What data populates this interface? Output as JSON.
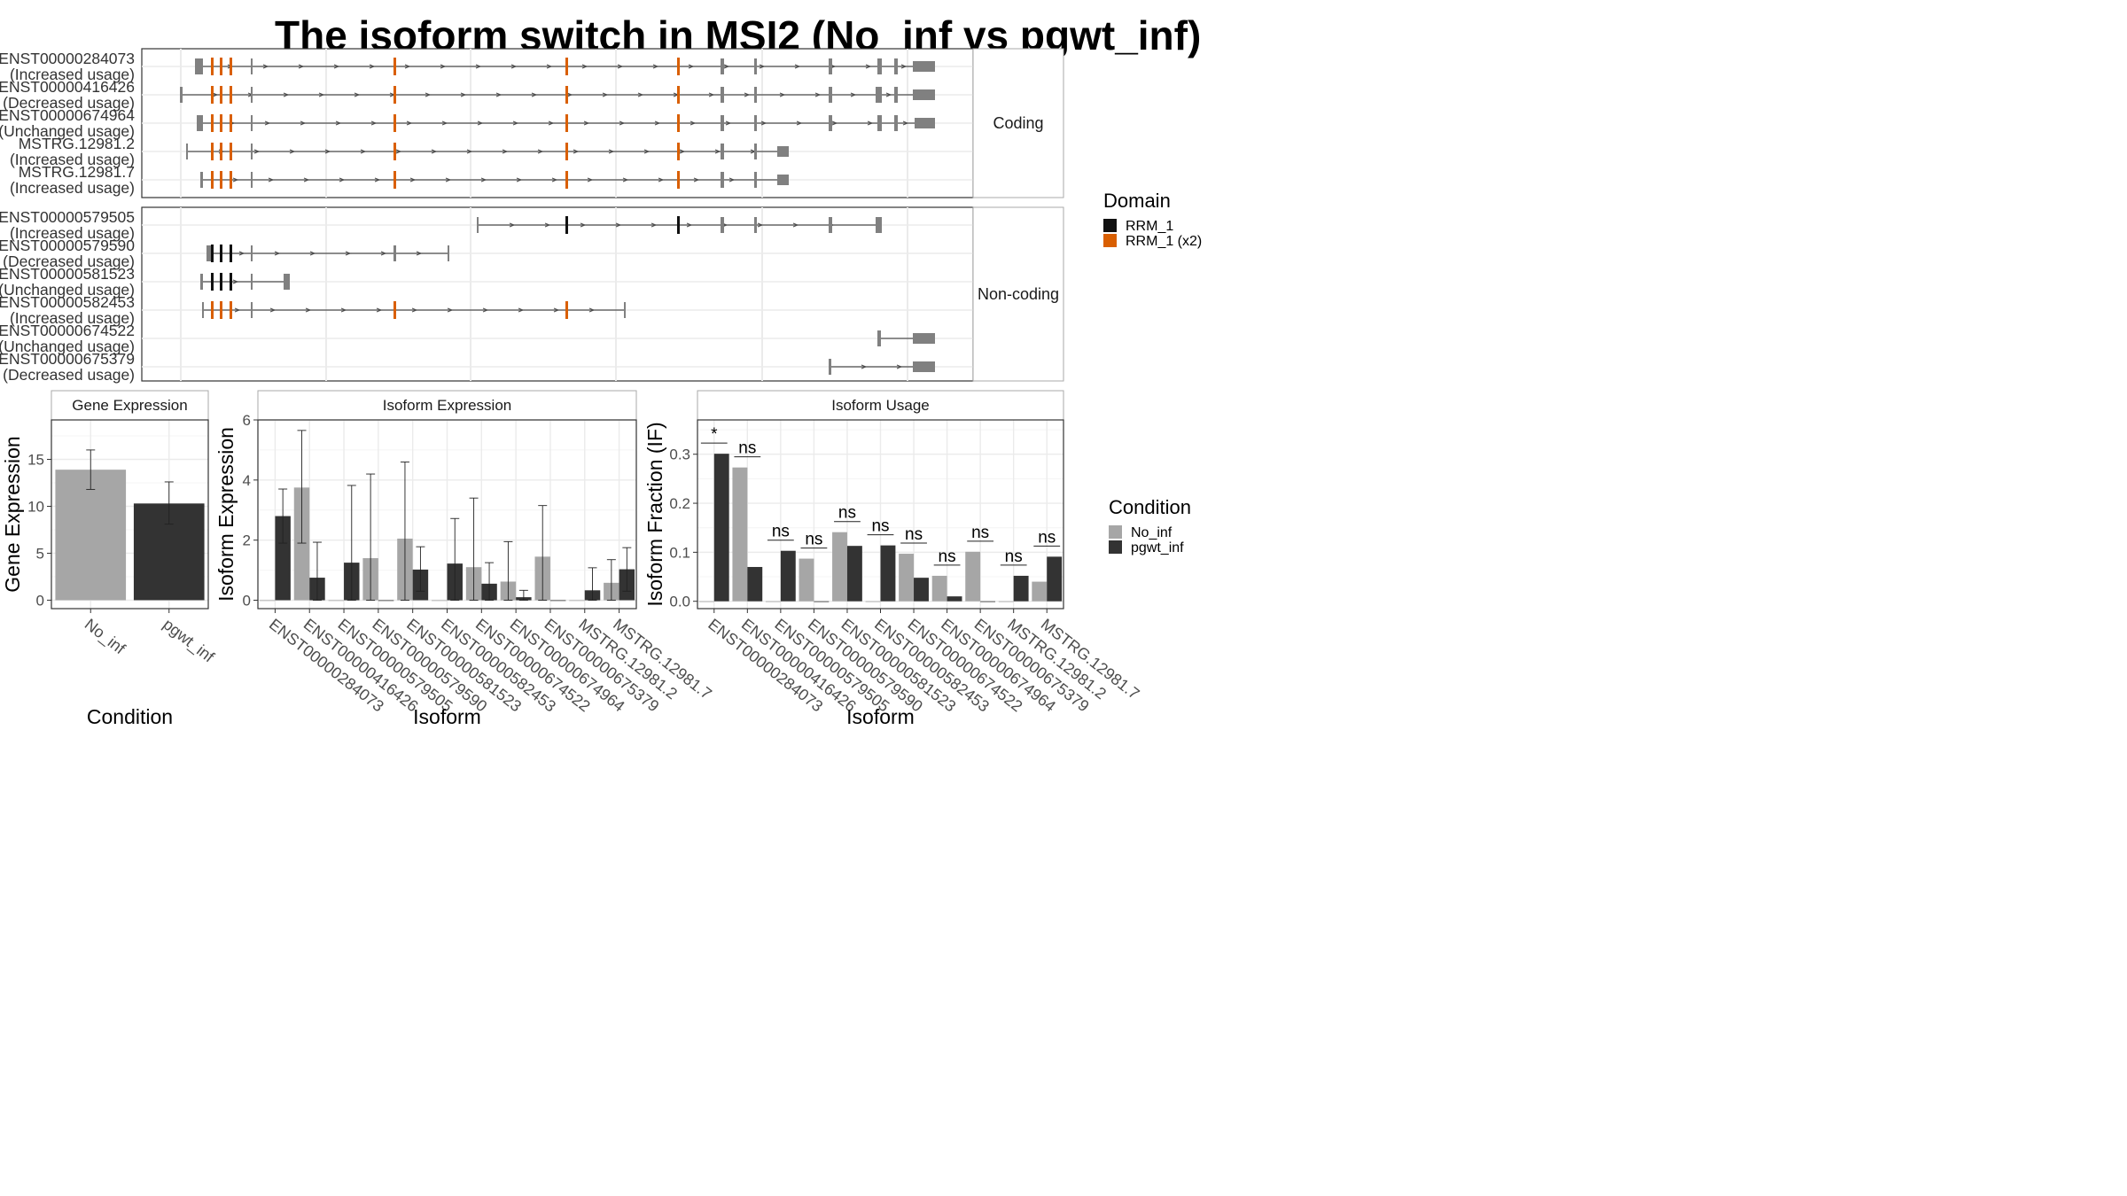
{
  "title": "The isoform switch in MSI2 (No_inf vs pgwt_inf)",
  "colors": {
    "no_inf": "#a6a6a6",
    "pgwt_inf": "#333333",
    "exon": "#808080",
    "rrm": "#111111",
    "rrm_x2": "#d95f02",
    "intron": "#4d4d4d",
    "panel_bg": "#ffffff",
    "strip_bg": "#ffffff",
    "grid": "#ebebeb",
    "frame": "#333333"
  },
  "structure": {
    "coding_label": "Coding",
    "noncoding_label": "Non-coding",
    "coding": [
      {
        "id": "ENST00000284073",
        "usage": "(Increased usage)",
        "start": 220,
        "end": 1055,
        "exons": [
          [
            220,
            226
          ],
          [
            226,
            229
          ],
          [
            238,
            241
          ],
          [
            248,
            251
          ],
          [
            259,
            262
          ],
          [
            283,
            285
          ],
          [
            444,
            447
          ],
          [
            638,
            641
          ],
          [
            764,
            767
          ],
          [
            813,
            817
          ],
          [
            851,
            854
          ],
          [
            935,
            939
          ],
          [
            990,
            995
          ],
          [
            1009,
            1013
          ],
          [
            1030,
            1055
          ]
        ],
        "domains": [
          [
            238,
            241,
            "x2"
          ],
          [
            248,
            251,
            "x2"
          ],
          [
            259,
            262,
            "x2"
          ],
          [
            444,
            447,
            "x2"
          ],
          [
            638,
            641,
            "x2"
          ],
          [
            764,
            767,
            "x2"
          ]
        ]
      },
      {
        "id": "ENST00000416426",
        "usage": "(Decreased usage)",
        "start": 203,
        "end": 1055,
        "exons": [
          [
            203,
            206
          ],
          [
            238,
            241
          ],
          [
            248,
            251
          ],
          [
            259,
            262
          ],
          [
            283,
            285
          ],
          [
            444,
            447
          ],
          [
            638,
            641
          ],
          [
            764,
            767
          ],
          [
            813,
            817
          ],
          [
            851,
            854
          ],
          [
            935,
            939
          ],
          [
            988,
            995
          ],
          [
            1009,
            1013
          ],
          [
            1030,
            1055
          ]
        ],
        "domains": [
          [
            238,
            241,
            "x2"
          ],
          [
            248,
            251,
            "x2"
          ],
          [
            259,
            262,
            "x2"
          ],
          [
            444,
            447,
            "x2"
          ],
          [
            638,
            641,
            "x2"
          ],
          [
            764,
            767,
            "x2"
          ]
        ]
      },
      {
        "id": "ENST00000674964",
        "usage": "(Unchanged usage)",
        "start": 222,
        "end": 1055,
        "exons": [
          [
            222,
            226
          ],
          [
            226,
            229
          ],
          [
            238,
            241
          ],
          [
            248,
            251
          ],
          [
            259,
            262
          ],
          [
            283,
            285
          ],
          [
            444,
            447
          ],
          [
            638,
            641
          ],
          [
            764,
            767
          ],
          [
            813,
            817
          ],
          [
            851,
            854
          ],
          [
            935,
            939
          ],
          [
            990,
            995
          ],
          [
            1009,
            1013
          ],
          [
            1032,
            1055
          ]
        ],
        "domains": [
          [
            238,
            241,
            "x2"
          ],
          [
            248,
            251,
            "x2"
          ],
          [
            259,
            262,
            "x2"
          ],
          [
            444,
            447,
            "x2"
          ],
          [
            638,
            641,
            "x2"
          ],
          [
            764,
            767,
            "x2"
          ]
        ]
      },
      {
        "id": "MSTRG.12981.2",
        "usage": "(Increased usage)",
        "start": 210,
        "end": 890,
        "exons": [
          [
            210,
            212
          ],
          [
            238,
            241
          ],
          [
            248,
            251
          ],
          [
            259,
            262
          ],
          [
            283,
            285
          ],
          [
            444,
            447
          ],
          [
            638,
            641
          ],
          [
            764,
            767
          ],
          [
            813,
            817
          ],
          [
            851,
            854
          ],
          [
            877,
            890
          ]
        ],
        "domains": [
          [
            238,
            241,
            "x2"
          ],
          [
            248,
            251,
            "x2"
          ],
          [
            259,
            262,
            "x2"
          ],
          [
            444,
            447,
            "x2"
          ],
          [
            638,
            641,
            "x2"
          ],
          [
            764,
            767,
            "x2"
          ]
        ]
      },
      {
        "id": "MSTRG.12981.7",
        "usage": "(Increased usage)",
        "start": 226,
        "end": 890,
        "exons": [
          [
            226,
            229
          ],
          [
            238,
            241
          ],
          [
            248,
            251
          ],
          [
            259,
            262
          ],
          [
            283,
            285
          ],
          [
            444,
            447
          ],
          [
            638,
            641
          ],
          [
            764,
            767
          ],
          [
            813,
            817
          ],
          [
            851,
            854
          ],
          [
            877,
            890
          ]
        ],
        "domains": [
          [
            238,
            241,
            "x2"
          ],
          [
            248,
            251,
            "x2"
          ],
          [
            259,
            262,
            "x2"
          ],
          [
            444,
            447,
            "x2"
          ],
          [
            638,
            641,
            "x2"
          ],
          [
            764,
            767,
            "x2"
          ]
        ]
      }
    ],
    "noncoding": [
      {
        "id": "ENST00000579505",
        "usage": "(Increased usage)",
        "start": 538,
        "end": 995,
        "exons": [
          [
            538,
            540
          ],
          [
            638,
            641
          ],
          [
            764,
            767
          ],
          [
            813,
            817
          ],
          [
            851,
            854
          ],
          [
            935,
            939
          ],
          [
            988,
            995
          ]
        ],
        "domains": [
          [
            638,
            641,
            "single"
          ],
          [
            764,
            767,
            "single"
          ]
        ]
      },
      {
        "id": "ENST00000579590",
        "usage": "(Decreased usage)",
        "start": 233,
        "end": 507,
        "exons": [
          [
            233,
            238
          ],
          [
            238,
            241
          ],
          [
            248,
            251
          ],
          [
            259,
            262
          ],
          [
            283,
            285
          ],
          [
            444,
            447
          ],
          [
            505,
            507
          ]
        ],
        "domains": [
          [
            238,
            241,
            "single"
          ],
          [
            248,
            251,
            "single"
          ],
          [
            259,
            262,
            "single"
          ]
        ]
      },
      {
        "id": "ENST00000581523",
        "usage": "(Unchanged usage)",
        "start": 226,
        "end": 327,
        "exons": [
          [
            226,
            229
          ],
          [
            238,
            241
          ],
          [
            248,
            251
          ],
          [
            259,
            262
          ],
          [
            283,
            285
          ],
          [
            320,
            327
          ]
        ],
        "domains": [
          [
            238,
            241,
            "single"
          ],
          [
            248,
            251,
            "single"
          ],
          [
            259,
            262,
            "single"
          ]
        ]
      },
      {
        "id": "ENST00000582453",
        "usage": "(Increased usage)",
        "start": 228,
        "end": 706,
        "exons": [
          [
            228,
            230
          ],
          [
            238,
            241
          ],
          [
            248,
            251
          ],
          [
            259,
            262
          ],
          [
            283,
            285
          ],
          [
            444,
            447
          ],
          [
            638,
            641
          ],
          [
            704,
            706
          ]
        ],
        "domains": [
          [
            238,
            241,
            "x2"
          ],
          [
            248,
            251,
            "x2"
          ],
          [
            259,
            262,
            "x2"
          ],
          [
            444,
            447,
            "x2"
          ],
          [
            638,
            641,
            "x2"
          ]
        ]
      },
      {
        "id": "ENST00000674522",
        "usage": "(Unchanged usage)",
        "start": 990,
        "end": 1055,
        "exons": [
          [
            990,
            994
          ],
          [
            1030,
            1055
          ]
        ],
        "domains": []
      },
      {
        "id": "ENST00000675379",
        "usage": "(Decreased usage)",
        "start": 935,
        "end": 1055,
        "exons": [
          [
            935,
            938
          ],
          [
            1030,
            1055
          ]
        ],
        "domains": []
      }
    ]
  },
  "legend_domain": {
    "title": "Domain",
    "items": [
      {
        "label": "RRM_1",
        "key": "rrm"
      },
      {
        "label": "RRM_1 (x2)",
        "key": "rrm_x2"
      }
    ]
  },
  "legend_condition": {
    "title": "Condition",
    "items": [
      {
        "label": "No_inf",
        "key": "no_inf"
      },
      {
        "label": "pgwt_inf",
        "key": "pgwt_inf"
      }
    ]
  },
  "chart_data": [
    {
      "type": "bar",
      "strip": "Gene Expression",
      "xlabel": "Condition",
      "ylabel": "Gene Expression",
      "categories": [
        "No_inf",
        "pgwt_inf"
      ],
      "values": [
        13.9,
        10.3
      ],
      "err_low": [
        11.8,
        8.1
      ],
      "err_high": [
        16.0,
        12.6
      ],
      "yticks": [
        0,
        5,
        10,
        15
      ],
      "ylim": [
        -0.9,
        19.2
      ]
    },
    {
      "type": "bar",
      "strip": "Isoform Expression",
      "xlabel": "Isoform",
      "ylabel": "Isoform Expression",
      "categories": [
        "ENST00000284073",
        "ENST00000416426",
        "ENST00000579505",
        "ENST00000579590",
        "ENST00000581523",
        "ENST00000582453",
        "ENST00000674522",
        "ENST00000674964",
        "ENST00000675379",
        "MSTRG.12981.2",
        "MSTRG.12981.7"
      ],
      "yticks": [
        0,
        2,
        4,
        6
      ],
      "ylim": [
        -0.28,
        6.0
      ],
      "series": [
        {
          "name": "No_inf",
          "values": [
            0,
            3.75,
            0,
            1.4,
            2.05,
            0,
            1.1,
            0.62,
            1.45,
            0,
            0.58
          ],
          "err_low": [
            0,
            1.9,
            0,
            0,
            0,
            0,
            0,
            0,
            0,
            0,
            0
          ],
          "err_high": [
            0,
            5.65,
            0,
            4.2,
            4.6,
            0,
            3.4,
            1.95,
            3.15,
            0,
            1.35
          ]
        },
        {
          "name": "pgwt_inf",
          "values": [
            2.8,
            0.75,
            1.25,
            0,
            1.02,
            1.22,
            0.55,
            0.1,
            0,
            0.33,
            1.03
          ],
          "err_low": [
            1.9,
            0,
            0,
            0,
            0.3,
            0,
            0,
            0,
            0,
            0,
            0.3
          ],
          "err_high": [
            3.7,
            1.93,
            3.82,
            0,
            1.78,
            2.72,
            1.25,
            0.33,
            0,
            1.08,
            1.75
          ]
        }
      ]
    },
    {
      "type": "bar",
      "strip": "Isoform Usage",
      "xlabel": "Isoform",
      "ylabel": "Isoform Fraction (IF)",
      "categories": [
        "ENST00000284073",
        "ENST00000416426",
        "ENST00000579505",
        "ENST00000579590",
        "ENST00000581523",
        "ENST00000582453",
        "ENST00000674522",
        "ENST00000674964",
        "ENST00000675379",
        "MSTRG.12981.2",
        "MSTRG.12981.7"
      ],
      "yticks": [
        0.0,
        0.1,
        0.2,
        0.3
      ],
      "ylim": [
        -0.015,
        0.37
      ],
      "series": [
        {
          "name": "No_inf",
          "values": [
            0.0,
            0.273,
            0.0,
            0.087,
            0.141,
            0.0,
            0.097,
            0.052,
            0.101,
            0.0,
            0.04
          ]
        },
        {
          "name": "pgwt_inf",
          "values": [
            0.301,
            0.07,
            0.103,
            0.0,
            0.113,
            0.114,
            0.048,
            0.01,
            0.0,
            0.052,
            0.091
          ]
        }
      ],
      "significance": [
        "*",
        "ns",
        "ns",
        "ns",
        "ns",
        "ns",
        "ns",
        "ns",
        "ns",
        "ns",
        "ns"
      ]
    }
  ]
}
